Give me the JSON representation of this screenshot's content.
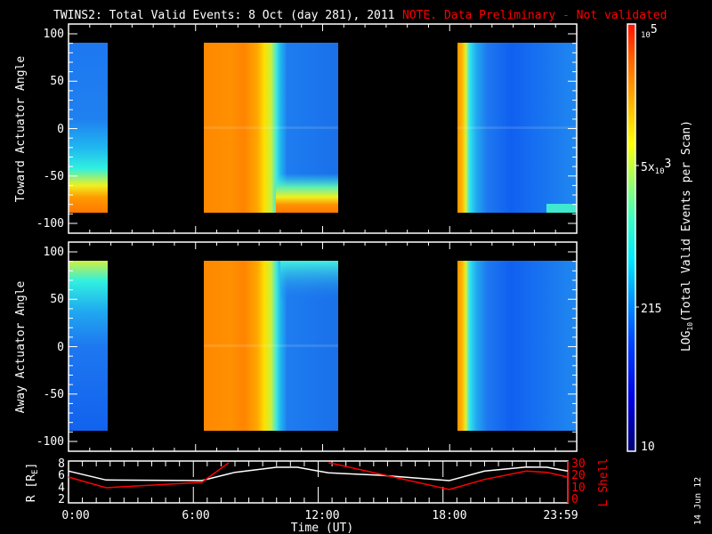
{
  "title": {
    "main": "TWINS2: Total Valid Events:  8 Oct (day 281), 2011",
    "note": "NOTE. Data Preliminary - Not validated",
    "note_color": "#ff0000"
  },
  "chart_data": [
    {
      "type": "heatmap",
      "ylabel": "Toward Actuator Angle",
      "ylim": [
        -110,
        110
      ],
      "yticks": [
        "100",
        "50",
        "0",
        "-50",
        "-100"
      ],
      "data_angle_range": [
        -90,
        90
      ],
      "data_time_coverage_hours": [
        [
          0.0,
          1.85
        ],
        [
          6.4,
          12.75
        ],
        [
          18.35,
          24.0
        ]
      ]
    },
    {
      "type": "heatmap",
      "ylabel": "Away Actuator Angle",
      "ylim": [
        -110,
        110
      ],
      "yticks": [
        "100",
        "50",
        "0",
        "-50",
        "-100"
      ],
      "data_angle_range": [
        -90,
        90
      ],
      "data_time_coverage_hours": [
        [
          0.0,
          1.85
        ],
        [
          6.4,
          12.75
        ],
        [
          18.35,
          24.0
        ]
      ]
    },
    {
      "type": "line",
      "xlabel": "Time (UT)",
      "xticks": [
        "0:00",
        "6:00",
        "12:00",
        "18:00",
        "23:59"
      ],
      "ylabel": "R [R",
      "ylabel_sub": "E",
      "ylabel_end": "]",
      "ylim": [
        2,
        8
      ],
      "yticks": [
        "8",
        "6",
        "4",
        "2"
      ],
      "y2label": "L Shell",
      "y2lim": [
        0,
        30
      ],
      "y2ticks": [
        "30",
        "20",
        "10",
        "0"
      ],
      "series": [
        {
          "axis": "left",
          "color": "#ffffff",
          "x": [
            0,
            1.8,
            6.4,
            8,
            10,
            11,
            12,
            12.5,
            15,
            18.3,
            20,
            22,
            23,
            24
          ],
          "y": [
            6.6,
            5.1,
            5.0,
            6.4,
            7.25,
            7.25,
            6.6,
            6.3,
            5.9,
            5.0,
            6.6,
            7.3,
            7.25,
            6.6
          ]
        },
        {
          "axis": "right",
          "color": "#ff0000",
          "x": [
            0,
            1.8,
            6.4,
            7.7
          ],
          "y": [
            18,
            9,
            13.5,
            30
          ]
        },
        {
          "axis": "right",
          "color": "#ff0000",
          "x": [
            12.5,
            12.8,
            18.3,
            20,
            22,
            23,
            24
          ],
          "y": [
            30,
            29,
            7.5,
            16,
            23,
            22,
            18
          ]
        }
      ]
    }
  ],
  "colorbar": {
    "label": "LOG",
    "label_sub": "10",
    "label_end": "(Total Valid Events per Scan)",
    "ticks": [
      {
        "base": "10",
        "exp": "5",
        "prefix": ""
      },
      {
        "base": "10",
        "exp": "3",
        "prefix": "5x"
      },
      {
        "base": "215",
        "exp": "",
        "prefix": ""
      },
      {
        "base": "10",
        "exp": "",
        "prefix": ""
      }
    ],
    "range": [
      10,
      100000
    ],
    "colormap": "jet"
  },
  "footer": {
    "date": "14 Jun 12"
  }
}
